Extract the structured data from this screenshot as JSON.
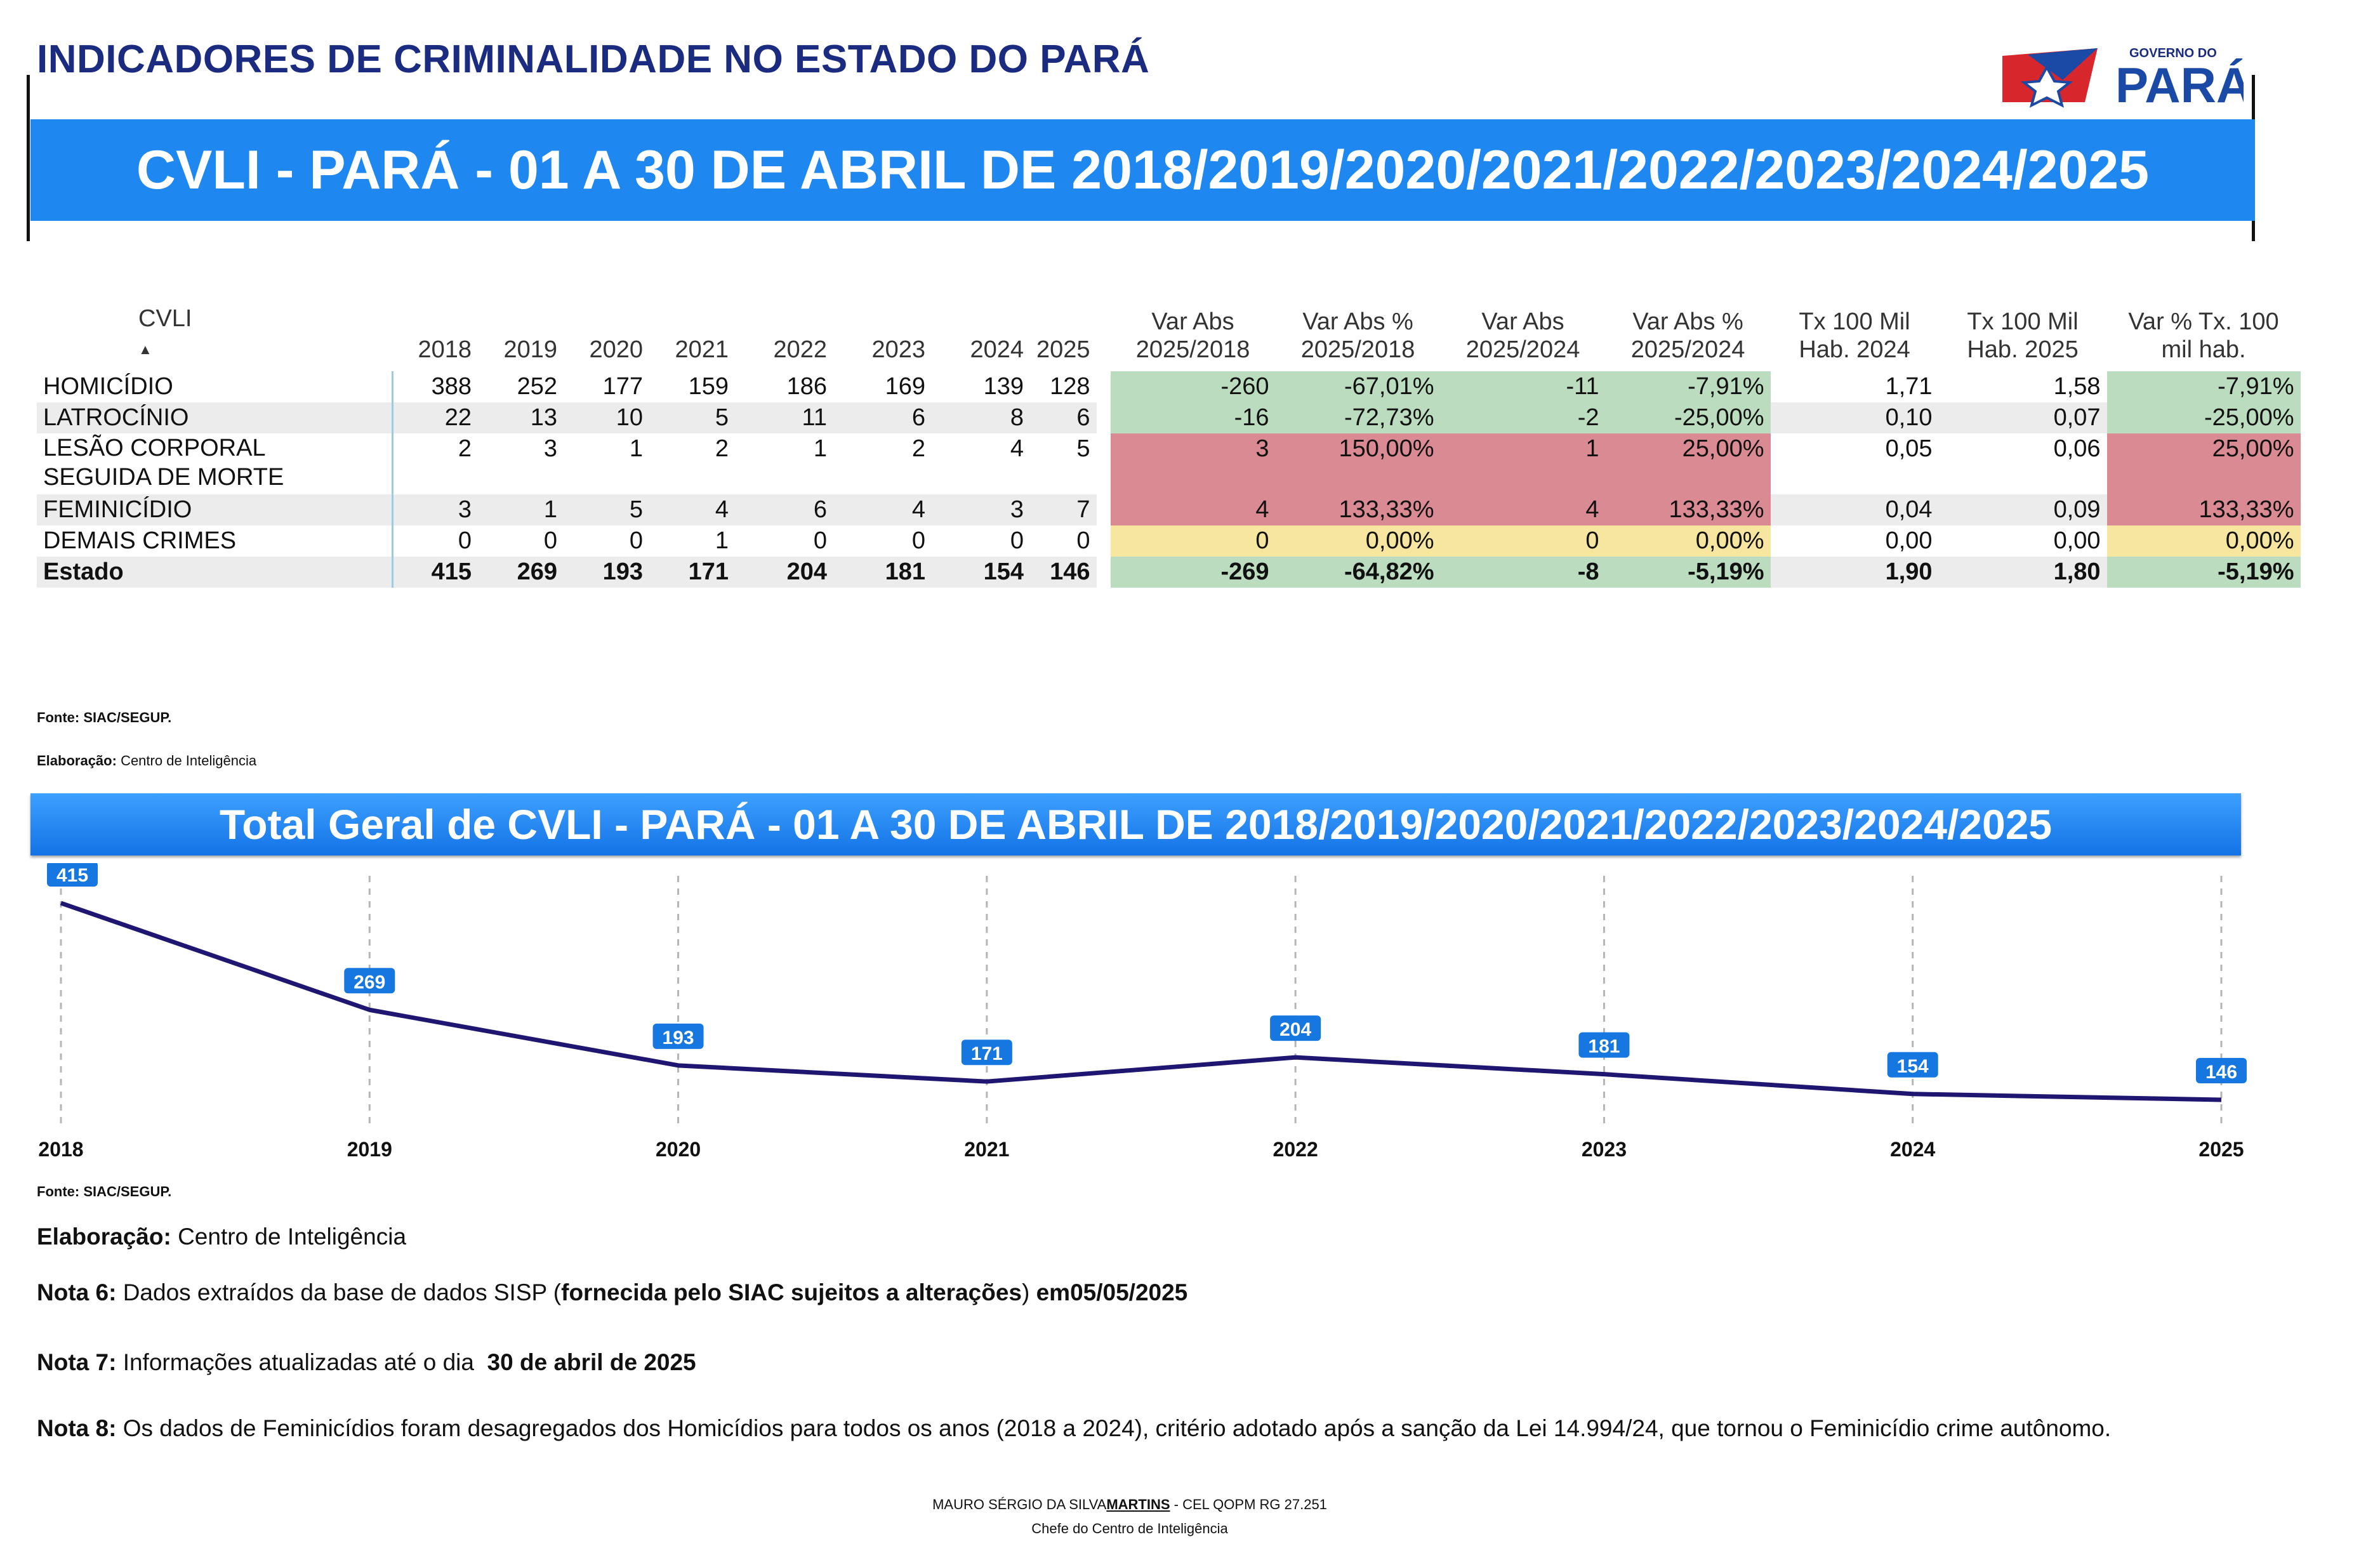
{
  "header": {
    "title": "INDICADORES DE CRIMINALIDADE NO ESTADO DO PARÁ",
    "banner": "CVLI - PARÁ - 01 A 30 DE ABRIL DE 2018/2019/2020/2021/2022/2023/2024/2025",
    "logo_top": "GOVERNO DO",
    "logo_main": "PARÁ"
  },
  "table": {
    "columns": [
      "CVLI",
      "2018",
      "2019",
      "2020",
      "2021",
      "2022",
      "2023",
      "2024",
      "2025",
      "Var Abs 2025/2018",
      "Var Abs % 2025/2018",
      "Var Abs 2025/2024",
      "Var Abs % 2025/2024",
      "Tx 100 Mil Hab. 2024",
      "Tx 100 Mil Hab. 2025",
      "Var % Tx. 100 mil hab."
    ],
    "rows": [
      {
        "name": "HOMICÍDIO",
        "values": [
          "388",
          "252",
          "177",
          "159",
          "186",
          "169",
          "139",
          "128"
        ],
        "var": [
          "-260",
          "-67,01%",
          "-11",
          "-7,91%",
          "1,71",
          "1,58",
          "-7,91%"
        ],
        "status": "green"
      },
      {
        "name": "LATROCÍNIO",
        "values": [
          "22",
          "13",
          "10",
          "5",
          "11",
          "6",
          "8",
          "6"
        ],
        "var": [
          "-16",
          "-72,73%",
          "-2",
          "-25,00%",
          "0,10",
          "0,07",
          "-25,00%"
        ],
        "status": "green"
      },
      {
        "name": "LESÃO CORPORAL",
        "name2": "SEGUIDA DE MORTE",
        "values": [
          "2",
          "3",
          "1",
          "2",
          "1",
          "2",
          "4",
          "5"
        ],
        "var": [
          "3",
          "150,00%",
          "1",
          "25,00%",
          "0,05",
          "0,06",
          "25,00%"
        ],
        "status": "red"
      },
      {
        "name": "FEMINICÍDIO",
        "values": [
          "3",
          "1",
          "5",
          "4",
          "6",
          "4",
          "3",
          "7"
        ],
        "var": [
          "4",
          "133,33%",
          "4",
          "133,33%",
          "0,04",
          "0,09",
          "133,33%"
        ],
        "status": "red"
      },
      {
        "name": "DEMAIS CRIMES",
        "values": [
          "0",
          "0",
          "0",
          "1",
          "0",
          "0",
          "0",
          "0"
        ],
        "var": [
          "0",
          "0,00%",
          "0",
          "0,00%",
          "0,00",
          "0,00",
          "0,00%"
        ],
        "status": "yellow"
      },
      {
        "name": "Estado",
        "values": [
          "415",
          "269",
          "193",
          "171",
          "204",
          "181",
          "154",
          "146"
        ],
        "var": [
          "-269",
          "-64,82%",
          "-8",
          "-5,19%",
          "1,90",
          "1,80",
          "-5,19%"
        ],
        "status": "green"
      }
    ],
    "fonte": "Fonte: SIAC/SEGUP.",
    "elab_label": "Elaboração:",
    "elab_value": "Centro de Inteligência"
  },
  "chart_data": {
    "type": "line",
    "title": "Total Geral de CVLI - PARÁ - 01 A 30 DE ABRIL DE 2018/2019/2020/2021/2022/2023/2024/2025",
    "categories": [
      "2018",
      "2019",
      "2020",
      "2021",
      "2022",
      "2023",
      "2024",
      "2025"
    ],
    "series": [
      {
        "values": [
          415,
          269,
          193,
          171,
          204,
          181,
          154,
          146
        ]
      }
    ],
    "line_color": "#1e1670",
    "label_color": "#1677e0"
  },
  "chart_notes": {
    "fonte": "Fonte: SIAC/SEGUP.",
    "elab_label": "Elaboração:",
    "elab_value": "Centro de Inteligência"
  },
  "notes": {
    "n6_label": "Nota 6:",
    "n6_a": "Dados extraídos da base de dados SISP (",
    "n6_b": "fornecida pelo SIAC sujeitos a alterações",
    "n6_c": ") ",
    "n6_d": "em05/05/2025",
    "n7_label": "Nota 7:",
    "n7_a": "Informações atualizadas até o dia",
    "n7_b": "30 de abril de 2025",
    "n8_label": "Nota 8:",
    "n8_a": "Os dados de Feminicídios foram desagregados dos Homicídios para todos os anos (2018 a 2024), critério adotado após a sanção da Lei 14.994/24, que tornou o Feminicídio crime autônomo."
  },
  "signature": {
    "prefix": "MAURO SÉRGIO DA SILVA",
    "surname": "MARTINS",
    "suffix": " - CEL QOPM RG 27.251",
    "role": "Chefe do Centro de Inteligência"
  }
}
